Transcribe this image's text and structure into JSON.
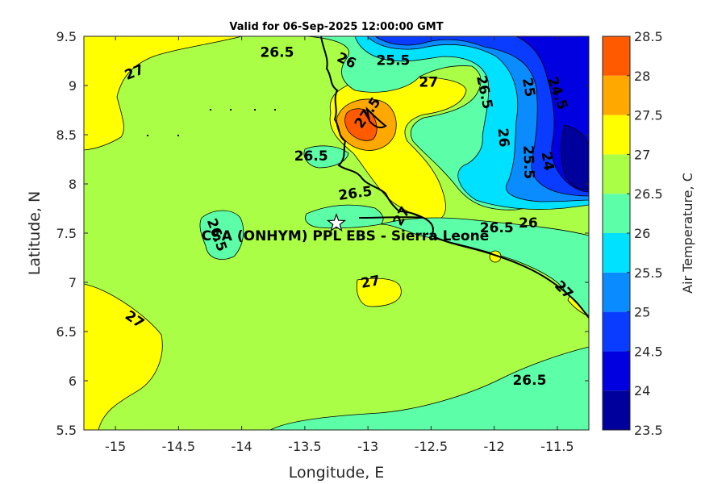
{
  "title": "Valid for 06-Sep-2025 12:00:00 GMT",
  "x_axis": {
    "label": "Longitude, E",
    "range": [
      -15.25,
      -11.25
    ],
    "ticks": [
      -15,
      -14.5,
      -14,
      -13.5,
      -13,
      -12.5,
      -12,
      -11.5
    ],
    "tick_labels": [
      "-15",
      "-14.5",
      "-14",
      "-13.5",
      "-13",
      "-12.5",
      "-12",
      "-11.5"
    ]
  },
  "y_axis": {
    "label": "Latitude, N",
    "range": [
      5.5,
      9.5
    ],
    "ticks": [
      5.5,
      6,
      6.5,
      7,
      7.5,
      8,
      8.5,
      9,
      9.5
    ],
    "tick_labels": [
      "5.5",
      "6",
      "6.5",
      "7",
      "7.5",
      "8",
      "8.5",
      "9",
      "9.5"
    ]
  },
  "colorbar": {
    "label": "Air Temperature, C",
    "levels": [
      23.5,
      24,
      24.5,
      25,
      25.5,
      26,
      26.5,
      27,
      27.5,
      28,
      28.5
    ],
    "tick_labels": [
      "23.5",
      "24",
      "24.5",
      "25",
      "25.5",
      "26",
      "26.5",
      "27",
      "27.5",
      "28",
      "28.5"
    ],
    "colors": [
      "#00009c",
      "#0000e0",
      "#0a3cff",
      "#0a8cff",
      "#00e0ff",
      "#5cffa8",
      "#aaff46",
      "#ffff00",
      "#ffa800",
      "#ff5a00",
      "#ff0000"
    ]
  },
  "site": {
    "name": "CSA (ONHYM) PPL EBS - Sierra Leone",
    "lon": -13.25,
    "lat": 7.6,
    "marker_icon": "star-icon"
  },
  "contour_labels": [
    {
      "text": "27",
      "lon": -14.85,
      "lat": 9.13,
      "rot": -22
    },
    {
      "text": "26.5",
      "lon": -13.72,
      "lat": 9.33,
      "rot": 0
    },
    {
      "text": "26",
      "lon": -13.17,
      "lat": 9.25,
      "rot": 25
    },
    {
      "text": "25.5",
      "lon": -12.8,
      "lat": 9.25,
      "rot": 0
    },
    {
      "text": "27",
      "lon": -12.52,
      "lat": 9.03,
      "rot": 0
    },
    {
      "text": "26.5",
      "lon": -12.08,
      "lat": 8.93,
      "rot": 78
    },
    {
      "text": "25",
      "lon": -11.73,
      "lat": 8.98,
      "rot": 80
    },
    {
      "text": "24.5",
      "lon": -11.5,
      "lat": 8.92,
      "rot": 70
    },
    {
      "text": "27.5",
      "lon": -13.0,
      "lat": 8.72,
      "rot": -55
    },
    {
      "text": "26",
      "lon": -11.93,
      "lat": 8.47,
      "rot": 85
    },
    {
      "text": "25.5",
      "lon": -11.73,
      "lat": 8.22,
      "rot": 88
    },
    {
      "text": "24",
      "lon": -11.58,
      "lat": 8.23,
      "rot": 80
    },
    {
      "text": "26.5",
      "lon": -13.45,
      "lat": 8.28,
      "rot": 0
    },
    {
      "text": "26.5",
      "lon": -13.1,
      "lat": 7.9,
      "rot": -8
    },
    {
      "text": "27",
      "lon": -12.73,
      "lat": 7.67,
      "rot": -60
    },
    {
      "text": "26.5",
      "lon": -11.98,
      "lat": 7.55,
      "rot": 0
    },
    {
      "text": "26",
      "lon": -11.73,
      "lat": 7.6,
      "rot": 0
    },
    {
      "text": "26.5",
      "lon": -14.2,
      "lat": 7.48,
      "rot": 70
    },
    {
      "text": "27",
      "lon": -12.98,
      "lat": 7.0,
      "rot": -10
    },
    {
      "text": "27",
      "lon": -14.85,
      "lat": 6.62,
      "rot": 35
    },
    {
      "text": "27",
      "lon": -11.45,
      "lat": 6.92,
      "rot": 45
    },
    {
      "text": "26.5",
      "lon": -11.72,
      "lat": 6.0,
      "rot": 0
    }
  ]
}
